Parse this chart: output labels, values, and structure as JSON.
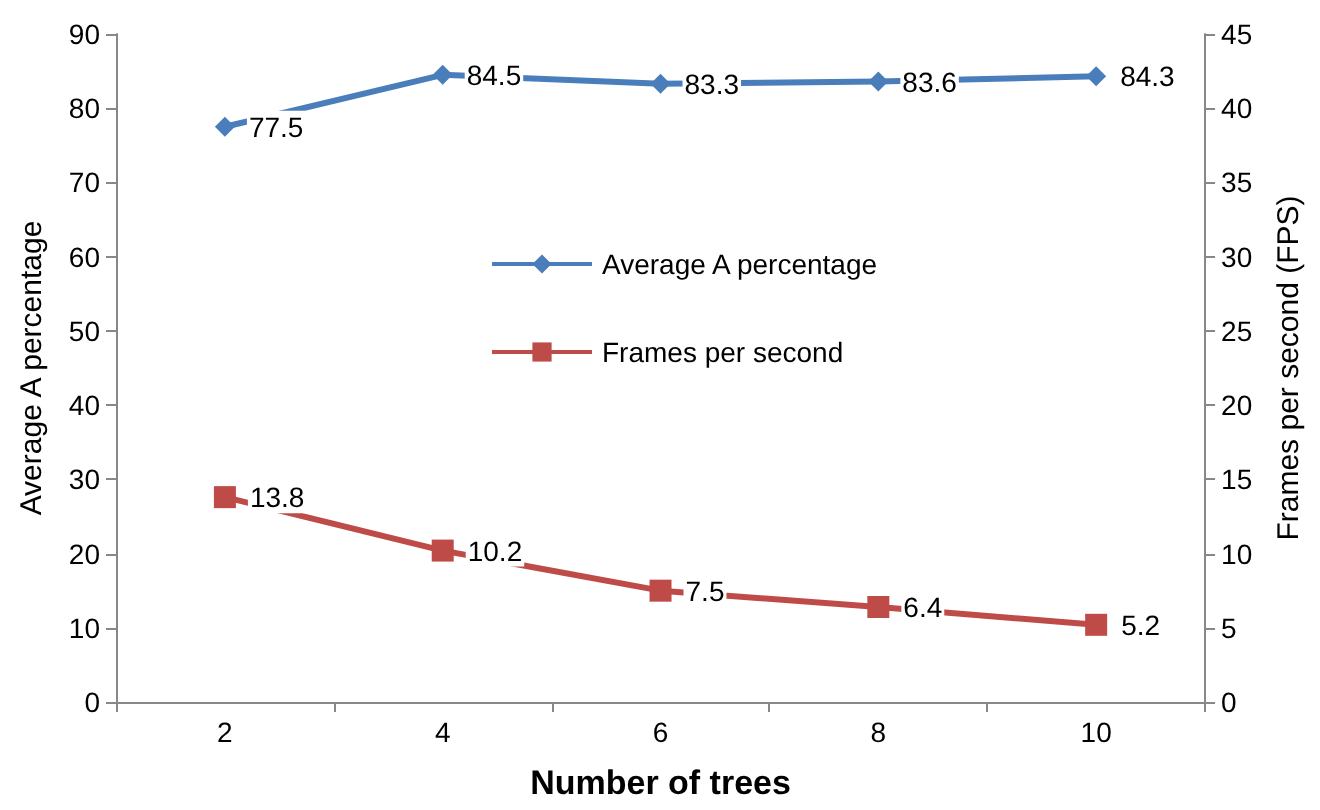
{
  "chart_data": {
    "type": "line",
    "xlabel": "Number of trees",
    "ylabel": "Average A percentage",
    "y2label": "Frames per second (FPS)",
    "categories": [
      "2",
      "4",
      "6",
      "8",
      "10"
    ],
    "series": [
      {
        "name": "Average A percentage",
        "color": "#4a7ebb",
        "marker": "diamond",
        "values": [
          77.5,
          84.5,
          83.3,
          83.6,
          84.3
        ]
      },
      {
        "name": "Frames per second",
        "color": "#be4b48",
        "marker": "square",
        "axis": "y2",
        "values": [
          13.8,
          10.2,
          7.5,
          6.4,
          5.2
        ]
      }
    ],
    "ylim": [
      0,
      90
    ],
    "yticks": [
      0,
      10,
      20,
      30,
      40,
      50,
      60,
      70,
      80,
      90
    ],
    "y2lim": [
      0,
      45
    ],
    "y2ticks": [
      0,
      5,
      10,
      15,
      20,
      25,
      30,
      35,
      40,
      45
    ],
    "data_labels": true,
    "grid": false,
    "legend": "center",
    "line_style": "solid"
  }
}
